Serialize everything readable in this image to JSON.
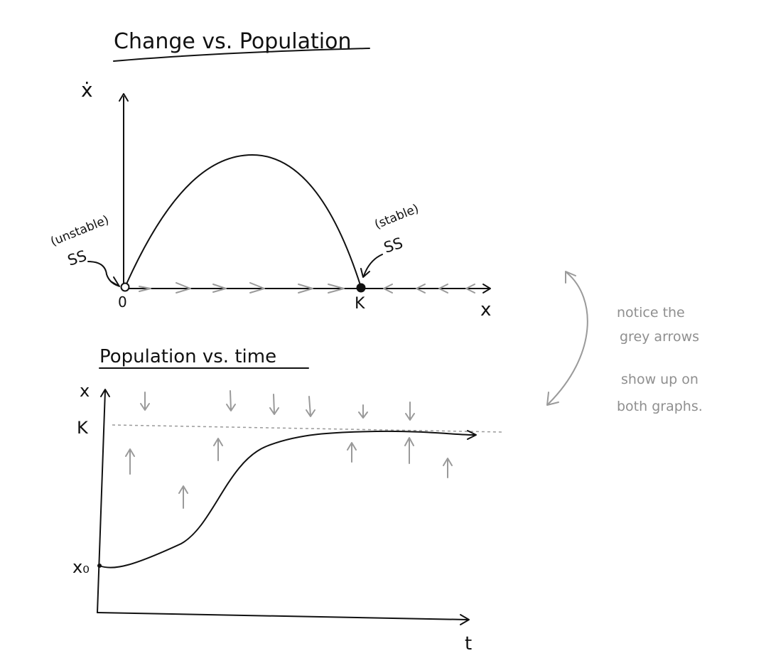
{
  "top_graph": {
    "title": "Change vs. Population",
    "y_axis_label": "ẋ",
    "x_axis_label": "x",
    "origin_label": "0",
    "carrying_label": "K",
    "unstable_label": "(unstable)",
    "unstable_ss_label": "SS",
    "stable_label": "(stable)",
    "stable_ss_label": "SS"
  },
  "bottom_graph": {
    "title": "Population vs. time",
    "y_axis_label": "x",
    "x_axis_label": "t",
    "k_label": "K",
    "x0_label": "x₀"
  },
  "note": {
    "line1": "notice the",
    "line2": "grey arrows",
    "line3": "show up on",
    "line4": "both graphs."
  },
  "colors": {
    "ink": "#111111",
    "gray_arrows": "#9a9a9a",
    "note_text": "#8f8f8f"
  }
}
